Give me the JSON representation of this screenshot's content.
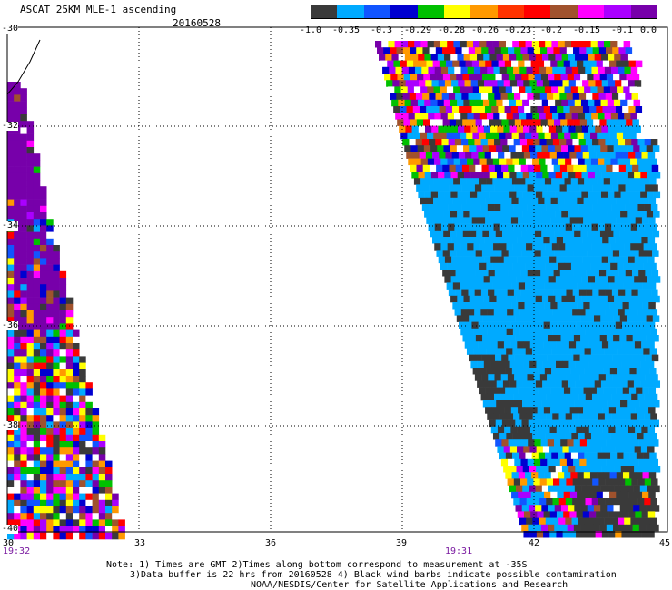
{
  "header": {
    "title": "ASCAT 25KM MLE-1 ascending",
    "date": "20160528"
  },
  "colorbar": {
    "colors": [
      "#3a3a3a",
      "#00aaff",
      "#1155ff",
      "#0000d0",
      "#00c000",
      "#ffff00",
      "#ff9900",
      "#ff3300",
      "#ff0000",
      "#a0522d",
      "#ff00ff",
      "#aa00ff",
      "#7700aa"
    ],
    "labels": [
      "-1.0",
      "-0.35",
      "-0.3",
      "-0.29",
      "-0.28",
      "-0.26",
      "-0.23",
      "-0.2",
      "-0.15",
      "-0.1",
      "0.0"
    ]
  },
  "map": {
    "lon_range": [
      30,
      45
    ],
    "lat_range": [
      -40,
      -30
    ],
    "x_ticks": [
      "30",
      "33",
      "36",
      "39",
      "42",
      "45"
    ],
    "y_ticks": [
      "-30",
      "-32",
      "-34",
      "-36",
      "-38",
      "-40"
    ],
    "time_left": "19:32",
    "time_right": "19:31"
  },
  "notes": {
    "line1": "Note: 1) Times are GMT 2)Times along bottom correspond to measurement at -35S",
    "line2": "3)Data buffer is 22 hrs from 20160528 4) Black wind barbs indicate possible contamination",
    "line3": "NOAA/NESDIS/Center for Satellite Applications and Research"
  }
}
